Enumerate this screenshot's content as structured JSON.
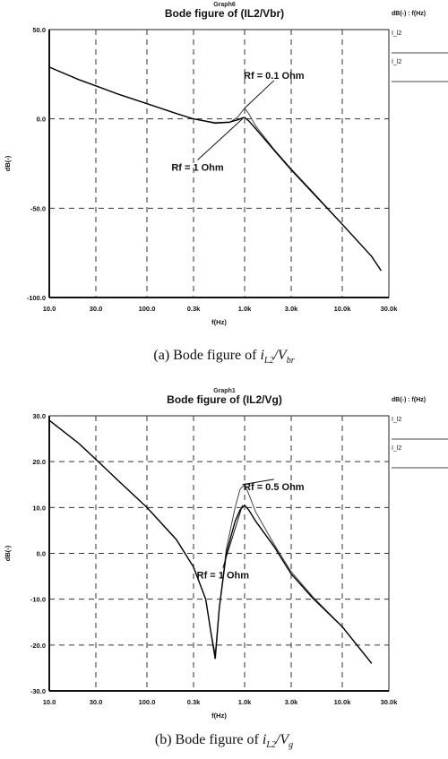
{
  "chart_data": [
    {
      "type": "line",
      "graph_label": "Graph6",
      "title": "Bode figure of (IL2/Vbr)",
      "xlabel": "f(Hz)",
      "ylabel": "dB(-)",
      "x_scale": "log",
      "xlim": [
        10,
        30000
      ],
      "ylim": [
        -100,
        50
      ],
      "grid": true,
      "x_ticks": [
        "10.0",
        "30.0",
        "100.0",
        "0.3k",
        "1.0k",
        "3.0k",
        "10.0k",
        "30.0k"
      ],
      "x_tick_values": [
        10,
        30,
        100,
        300,
        1000,
        3000,
        10000,
        30000
      ],
      "y_ticks": [
        "50.0",
        "0.0",
        "-50.0",
        "-100.0"
      ],
      "y_tick_values": [
        50,
        0,
        -50,
        -100
      ],
      "legend_header": "dB(-) : f(Hz)",
      "legend": [
        "I_l2",
        "I_l2"
      ],
      "annotations": [
        {
          "text": "Rf = 0.1 Ohm",
          "x": 2000,
          "y": 22.5,
          "arrow_to": [
            1000,
            6
          ]
        },
        {
          "text": "Rf = 1 Ohm",
          "x": 330,
          "y": -29,
          "arrow_to": [
            950,
            0
          ]
        }
      ],
      "series": [
        {
          "x": [
            10,
            20,
            30,
            50,
            100,
            200,
            300,
            500,
            700,
            850,
            950,
            1000,
            1100,
            1300,
            2000,
            3000,
            5000,
            10000,
            20000,
            25000
          ],
          "y": [
            29,
            22,
            18.5,
            14,
            8.5,
            3,
            0,
            -2.5,
            -2,
            1,
            4.5,
            6,
            3,
            -4,
            -17,
            -28,
            -41,
            -59,
            -77,
            -85
          ]
        },
        {
          "x": [
            10,
            20,
            30,
            50,
            100,
            200,
            300,
            500,
            700,
            850,
            950,
            1000,
            1100,
            1300,
            2000,
            3000,
            5000,
            10000,
            20000,
            25000
          ],
          "y": [
            29,
            22,
            18.5,
            14,
            8.5,
            3,
            0,
            -2.2,
            -1.8,
            -0.5,
            0.5,
            0.8,
            -1,
            -5.5,
            -17.5,
            -28.5,
            -41.5,
            -59,
            -77,
            -85
          ]
        }
      ]
    },
    {
      "type": "line",
      "graph_label": "Graph1",
      "title": "Bode figure of (IL2/Vg)",
      "xlabel": "f(Hz)",
      "ylabel": "dB(-)",
      "x_scale": "log",
      "xlim": [
        10,
        30000
      ],
      "ylim": [
        -30,
        30
      ],
      "grid": true,
      "x_ticks": [
        "10.0",
        "30.0",
        "100.0",
        "0.3k",
        "1.0k",
        "3.0k",
        "10.0k",
        "30.0k"
      ],
      "x_tick_values": [
        10,
        30,
        100,
        300,
        1000,
        3000,
        10000,
        30000
      ],
      "y_ticks": [
        "30.0",
        "20.0",
        "10.0",
        "0.0",
        "-10.0",
        "-20.0",
        "-30.0"
      ],
      "y_tick_values": [
        30,
        20,
        10,
        0,
        -10,
        -20,
        -30
      ],
      "legend_header": "dB(-) : f(Hz)",
      "legend": [
        "I_l2",
        "I_l2"
      ],
      "annotations": [
        {
          "text": "Rf = 0.5 Ohm",
          "x": 2000,
          "y": 13.8,
          "arrow_to": [
            950,
            15
          ]
        },
        {
          "text": "Rf = 1 Ohm",
          "x": 600,
          "y": -5.5,
          "arrow_to": [
            950,
            10.5
          ]
        }
      ],
      "series": [
        {
          "x": [
            10,
            20,
            30,
            50,
            100,
            200,
            300,
            400,
            450,
            500,
            550,
            650,
            800,
            900,
            1000,
            1100,
            1300,
            2000,
            3000,
            5000,
            10000,
            20000
          ],
          "y": [
            29,
            24,
            20.5,
            16,
            10,
            3,
            -3,
            -10,
            -17,
            -22,
            -12,
            1,
            10,
            14,
            15,
            13,
            9,
            2,
            -4,
            -9.5,
            -16,
            -24
          ]
        },
        {
          "x": [
            10,
            20,
            30,
            50,
            100,
            200,
            300,
            400,
            450,
            500,
            550,
            650,
            800,
            900,
            1000,
            1100,
            1300,
            2000,
            3000,
            5000,
            10000,
            20000
          ],
          "y": [
            29,
            24,
            20.5,
            16,
            10,
            3,
            -3,
            -10,
            -17,
            -23,
            -12,
            0,
            7,
            9.5,
            10.5,
            9.5,
            7,
            1.5,
            -4.5,
            -9.8,
            -16,
            -24
          ]
        }
      ]
    }
  ],
  "captions": [
    {
      "prefix": "(a) Bode figure of ",
      "num": "i",
      "num_sub": "L2",
      "sep": "/",
      "den": "V",
      "den_sub": "br"
    },
    {
      "prefix": "(b) Bode figure of ",
      "num": "i",
      "num_sub": "L2",
      "sep": "/",
      "den": "V",
      "den_sub": "g"
    }
  ]
}
